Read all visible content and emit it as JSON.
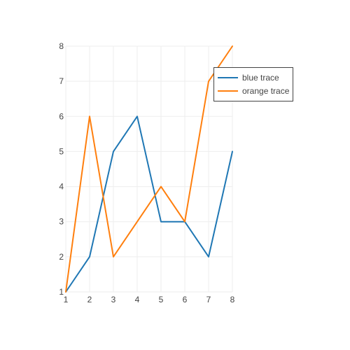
{
  "chart_data": {
    "type": "line",
    "x": [
      1,
      2,
      3,
      4,
      5,
      6,
      7,
      8
    ],
    "series": [
      {
        "name": "blue trace",
        "values": [
          1,
          2,
          5,
          6,
          3,
          3,
          2,
          5
        ],
        "color": "#1f77b4"
      },
      {
        "name": "orange trace",
        "values": [
          1,
          6,
          2,
          3,
          4,
          3,
          7,
          8
        ],
        "color": "#ff7f0e"
      }
    ],
    "xlim": [
      1,
      8
    ],
    "ylim": [
      1,
      8
    ],
    "x_ticks": [
      "1",
      "2",
      "3",
      "4",
      "5",
      "6",
      "7",
      "8"
    ],
    "y_ticks": [
      "1",
      "2",
      "3",
      "4",
      "5",
      "6",
      "7",
      "8"
    ],
    "grid": true,
    "legend": "top-right",
    "title": "",
    "xlabel": "",
    "ylabel": ""
  }
}
